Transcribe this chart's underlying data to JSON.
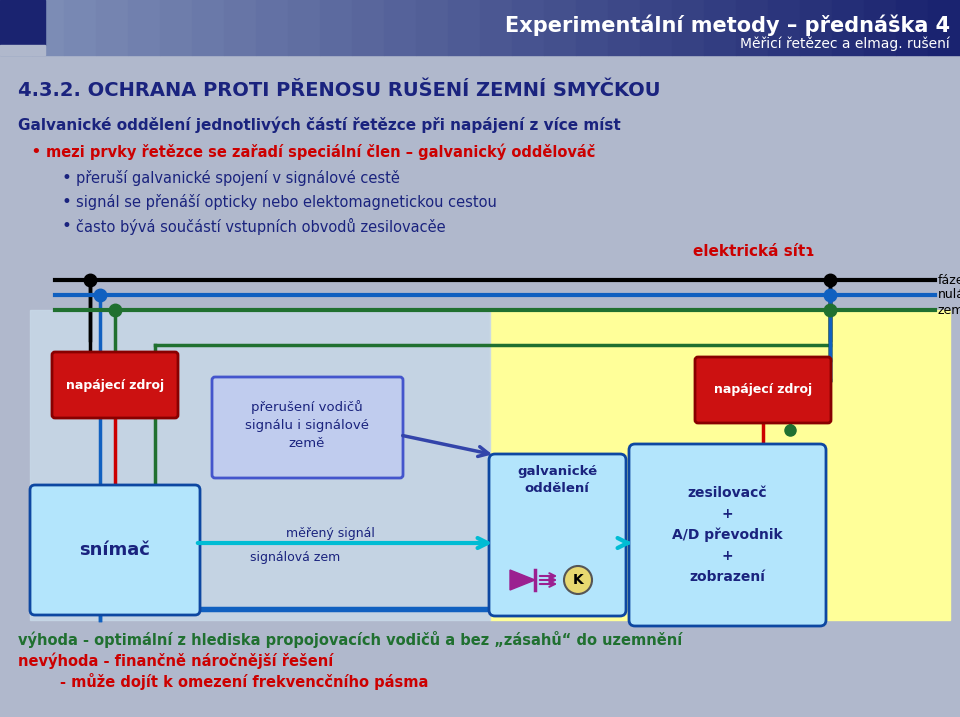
{
  "bg_color": "#b0b8cc",
  "header_title": "Experimentální metody – přednáška 4",
  "header_subtitle": "Měřicí řetězec a elmag. rušení",
  "section_title": "4.3.2. OCHRANA PROTI PŘENOSU RUŠENÍ ZEMNÍ SMYČKOU",
  "intro_bold": "Galvanické oddělení jednotlivých částí řetězce při napájení z více míst",
  "bullet_red": "mezi prvky řetězce se zařadí speciální člen – galvanický oddělováč",
  "bullets": [
    "přeruší galvanické spojení v signálové cestě",
    "signál se přenáší opticky nebo elektomagnetickou cestou",
    "často bývá součástí vstupních obvodů zesilovacěe"
  ],
  "elec_label": "elektrická sítɿ",
  "faze_label": "fáze",
  "nulak_label": "nulák",
  "zem_label": "zem",
  "napajeci_label": "napájecí zdroj",
  "snimac_label": "snímač",
  "prerusion_label": "přerušení vodičů\nsignálu i signálové\nzemě",
  "mereny_signal_label": "měřený signál",
  "signalova_zem_label": "signálová zem",
  "galvanicke_oddeleni_label": "galvanické\noddělení",
  "zesilovac_label": "zesilovacč\n+\nA/D převodnik\n+\nzobrazení",
  "vyhoda": "výhoda - optimální z hlediska propojovacích vodičů a bez „zásahů“ do uzemnění",
  "nevyhoda1": "nevýhoda - finančně náročnější řešení",
  "nevyhoda2": "- může dojít k omezení frekvencčního pásma"
}
